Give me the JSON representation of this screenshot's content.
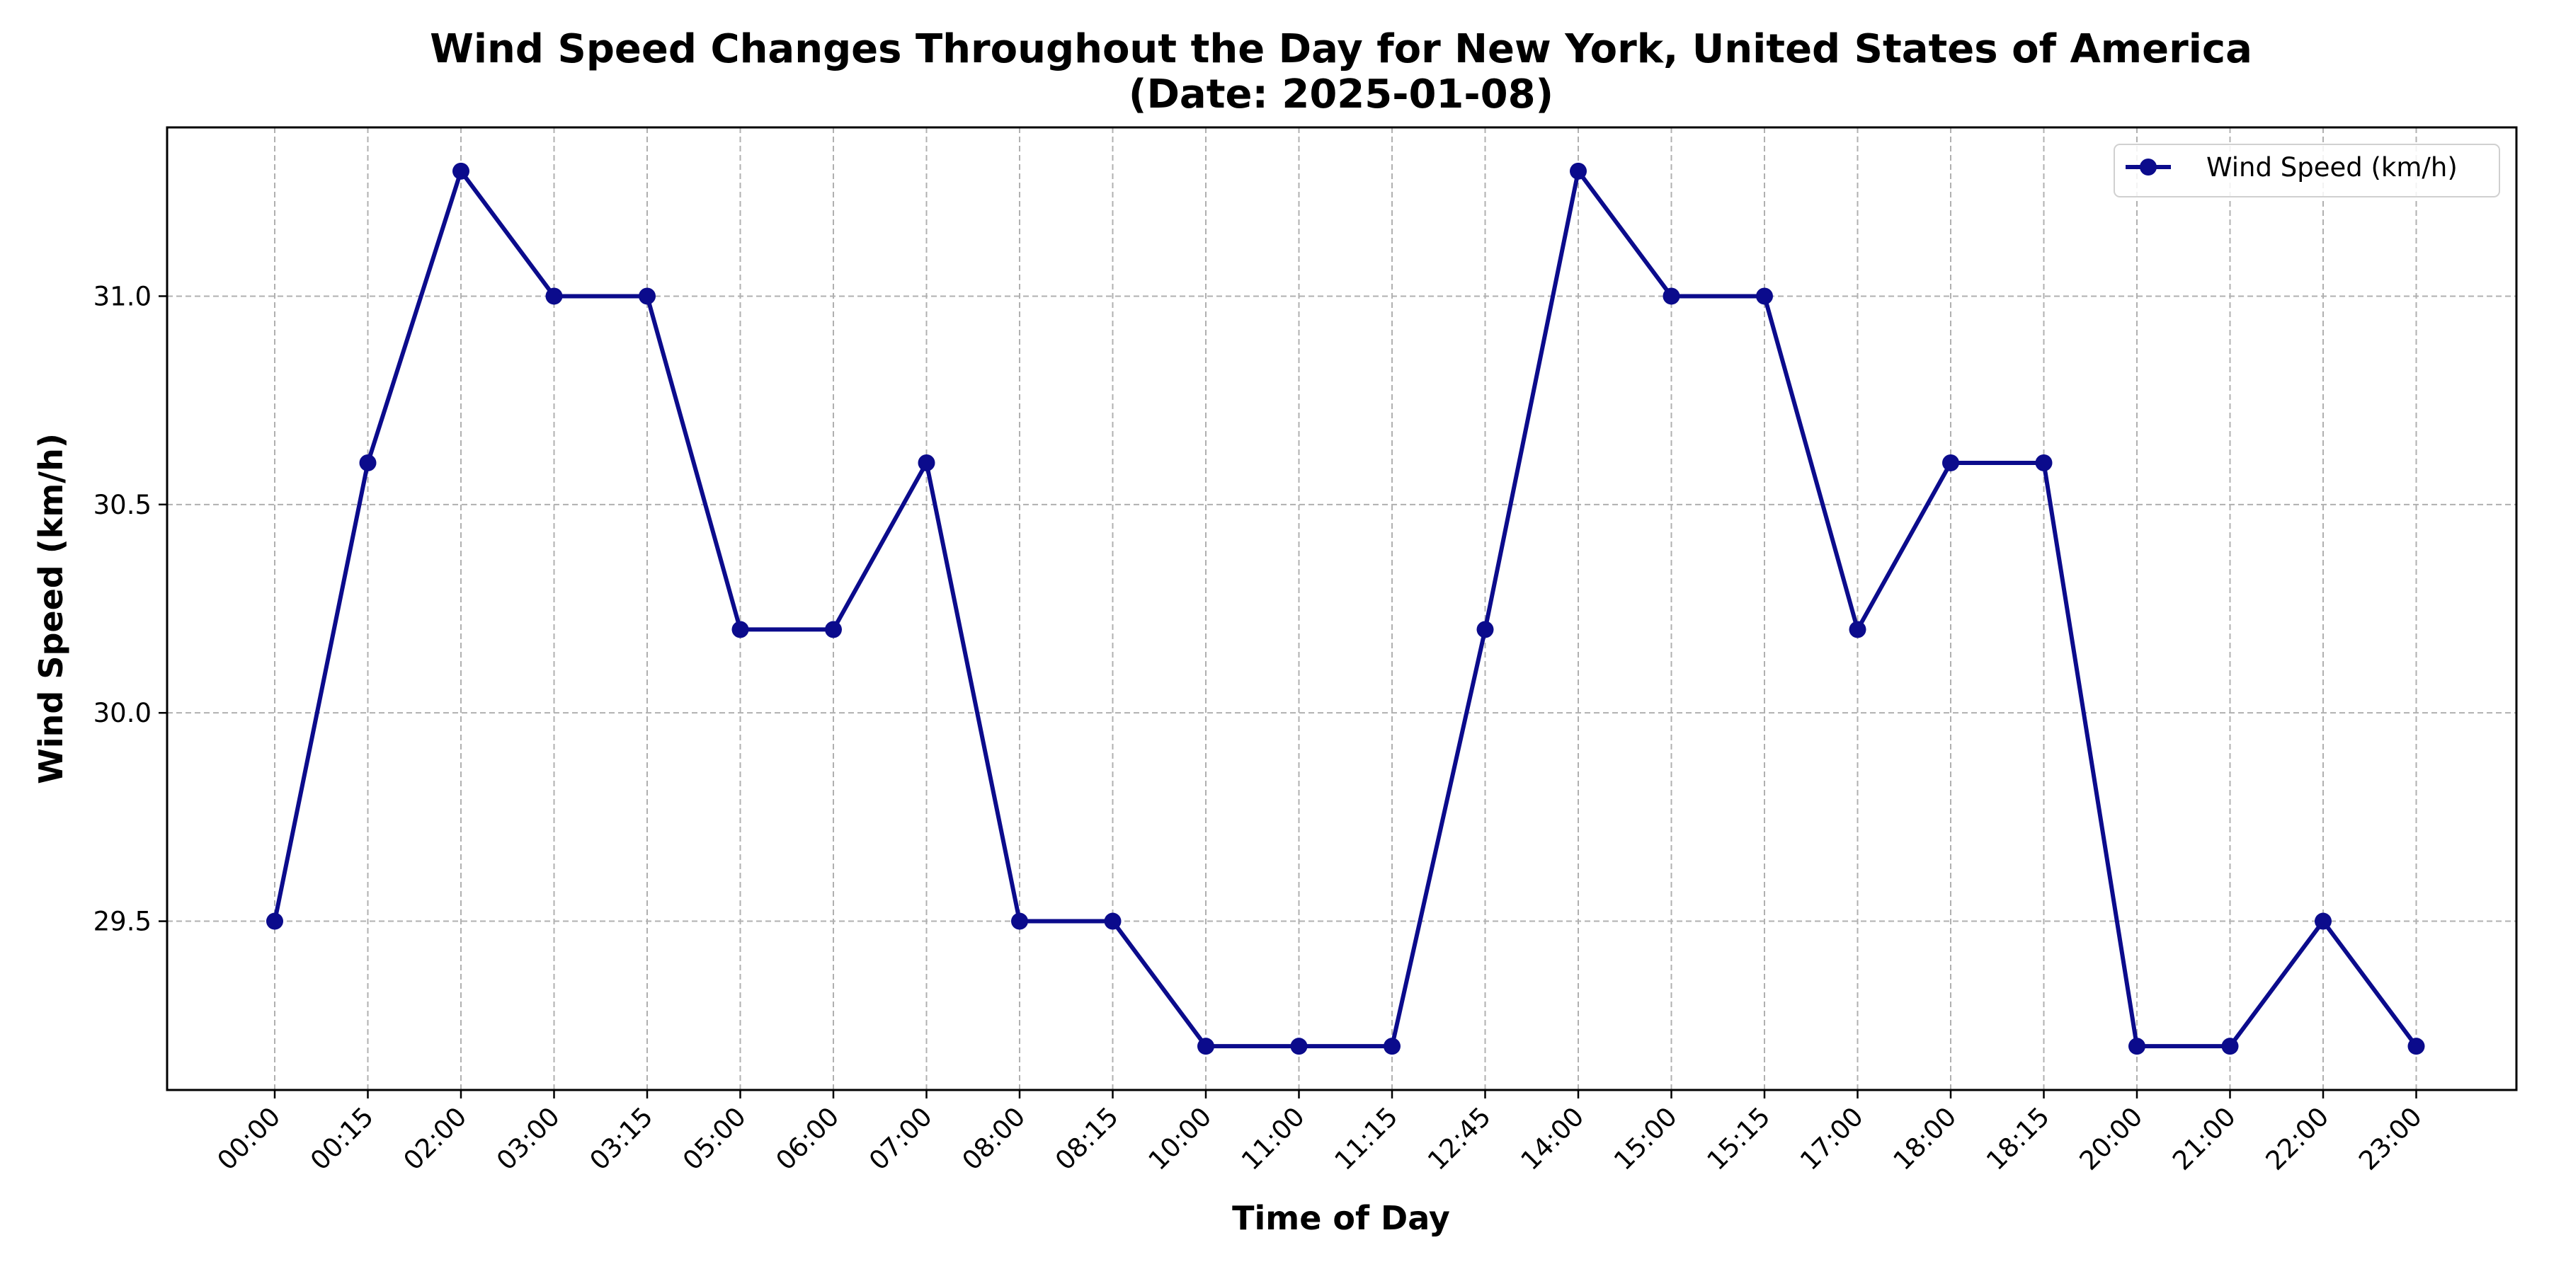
{
  "chart_data": {
    "type": "line",
    "title": "Wind Speed Changes Throughout the Day for New York, United States of America",
    "subtitle": "(Date: 2025-01-08)",
    "xlabel": "Time of Day",
    "ylabel": "Wind Speed (km/h)",
    "categories": [
      "00:00",
      "00:15",
      "02:00",
      "03:00",
      "03:15",
      "05:00",
      "06:00",
      "07:00",
      "08:00",
      "08:15",
      "10:00",
      "11:00",
      "11:15",
      "12:45",
      "14:00",
      "15:00",
      "15:15",
      "17:00",
      "18:00",
      "18:15",
      "20:00",
      "21:00",
      "22:00",
      "23:00"
    ],
    "series": [
      {
        "name": "Wind Speed (km/h)",
        "color": "#0b0b8c",
        "marker": "circle",
        "values": [
          29.5,
          30.6,
          31.3,
          31.0,
          31.0,
          30.2,
          30.2,
          30.6,
          29.5,
          29.5,
          29.2,
          29.2,
          29.2,
          30.2,
          31.3,
          31.0,
          31.0,
          30.2,
          30.6,
          30.6,
          29.2,
          29.2,
          29.5,
          29.2
        ]
      }
    ],
    "ylim": [
      29.095,
      31.405
    ],
    "yticks": [
      "29.5",
      "30.0",
      "30.5",
      "31.0"
    ],
    "grid": true,
    "legend": "top-right"
  }
}
